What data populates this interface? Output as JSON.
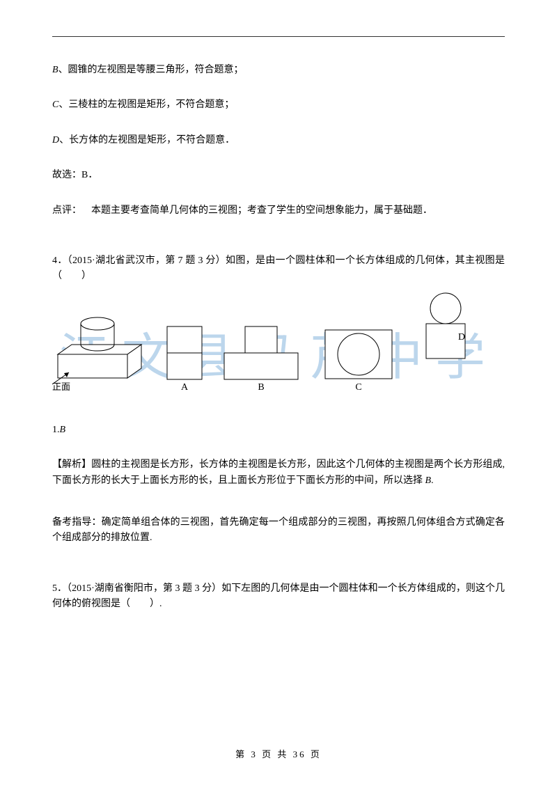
{
  "top_paragraphs": [
    "B、圆锥的左视图是等腰三角形，符合题意；",
    "C、三棱柱的左视图是矩形，不符合题意；",
    "D、长方体的左视图是矩形，不符合题意．",
    "故选：B．"
  ],
  "review": {
    "label": "点评：",
    "text": "本题主要考查简单几何体的三视图；考查了学生的空间想象能力，属于基础题．"
  },
  "q4": {
    "stem_prefix": "4．（2015·湖北省武汉市，第 7 题 3 分）如图，是由一个圆柱体和一个长方体组成的几何体，其主视图是（　　）",
    "answer": "1.B",
    "analysis_label": "【解析】",
    "analysis": "圆柱的主视图是长方形，长方体的主视图是长方形，因此这个几何体的主视图是两个长方形组成,下面长方形的长大于上面长方形的长，且上面长方形位于下面长方形的中间，所以选择 B.",
    "guide_label": "备考指导：",
    "guide": "确定简单组合体的三视图，首先确定每一个组成部分的三视图，再按照几何体组合方式确定各个组成部分的排放位置."
  },
  "q5": {
    "stem": "5．（2015·湖南省衡阳市，第 3 题 3 分）如下左图的几何体是由一个圆柱体和一个长方体组成的，则这个几何体的俯视图是（　　）."
  },
  "figure": {
    "front_label": "正面",
    "options": [
      "A",
      "B",
      "C",
      "D"
    ],
    "stroke": "#000000",
    "stroke_width": 1,
    "fill": "#ffffff"
  },
  "watermark": "江文县马芹中学",
  "footer": {
    "prefix": "第",
    "page": "3",
    "mid": "页 共",
    "total": "36",
    "suffix": "页"
  }
}
